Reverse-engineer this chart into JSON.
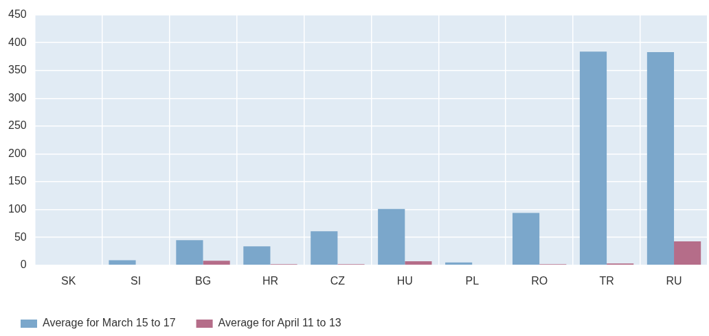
{
  "chart_data": {
    "type": "bar",
    "categories": [
      "SK",
      "SI",
      "BG",
      "HR",
      "CZ",
      "HU",
      "PL",
      "RO",
      "TR",
      "RU"
    ],
    "series": [
      {
        "name": "Average for March 15 to 17",
        "color": "#7ba7cb",
        "values": [
          0,
          9,
          45,
          34,
          61,
          101,
          5,
          94,
          384,
          383
        ]
      },
      {
        "name": "Average for April 11 to 13",
        "color": "#b56d89",
        "values": [
          0,
          0,
          8,
          2,
          2,
          7,
          0,
          2,
          3,
          43
        ]
      }
    ],
    "ylim": [
      0,
      450
    ],
    "yticks": [
      0,
      50,
      100,
      150,
      200,
      250,
      300,
      350,
      400,
      450
    ],
    "grid": true,
    "legend": "bottom left"
  }
}
